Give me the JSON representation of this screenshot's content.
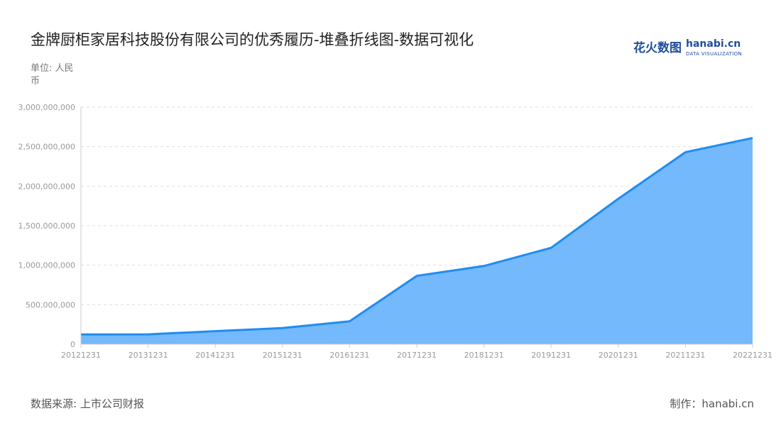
{
  "title": "金牌厨柜家居科技股份有限公司的优秀履历-堆叠折线图-数据可视化",
  "unit": "单位: 人民币",
  "logo": {
    "cn": "花火数图",
    "en": "hanabi.cn",
    "sub": "DATA VISUALIZATION"
  },
  "source": "数据来源: 上市公司财报",
  "maker": "制作：hanabi.cn",
  "colors": {
    "line": "#1e8cf5",
    "area": "#74b9fb"
  },
  "chart_data": {
    "type": "area",
    "categories": [
      "20121231",
      "20131231",
      "20141231",
      "20151231",
      "20161231",
      "20171231",
      "20181231",
      "20191231",
      "20201231",
      "20211231",
      "20221231"
    ],
    "values": [
      123000000,
      125000000,
      165000000,
      204000000,
      290000000,
      865000000,
      990000000,
      1220000000,
      1840000000,
      2430000000,
      2610000000
    ],
    "ylim": [
      0,
      3000000000
    ],
    "yticks": [
      "0",
      "500,000,000",
      "1,000,000,000",
      "1,500,000,000",
      "2,000,000,000",
      "2,500,000,000",
      "3,000,000,000"
    ],
    "grid": true
  }
}
